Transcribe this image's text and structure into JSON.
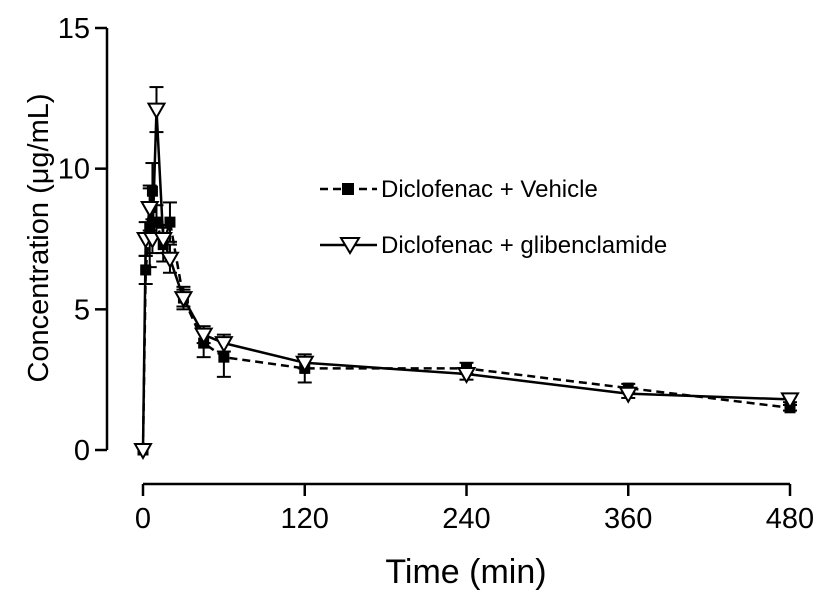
{
  "chart_data": {
    "type": "line",
    "xlabel": "Time (min)",
    "ylabel": "Concentration (μg/mL)",
    "xlim": [
      0,
      480
    ],
    "ylim": [
      0,
      15
    ],
    "x_ticks": [
      0,
      120,
      240,
      360,
      480
    ],
    "x_tick_labels": [
      "0",
      "120",
      "240",
      "360",
      "480"
    ],
    "y_ticks": [
      0,
      5,
      10,
      15
    ],
    "y_tick_labels": [
      "0",
      "5",
      "10",
      "15"
    ],
    "grid": false,
    "legend_position": "center-right",
    "series": [
      {
        "name": "Diclofenac + Vehicle",
        "style": "dashed",
        "marker": "filled-square",
        "color": "#000000",
        "points": [
          {
            "x": 0,
            "y": 0.0,
            "err": 0.0
          },
          {
            "x": 2,
            "y": 6.4,
            "err": 0.5
          },
          {
            "x": 5,
            "y": 7.9,
            "err": 1.4
          },
          {
            "x": 7,
            "y": 9.2,
            "err": 1.0
          },
          {
            "x": 10,
            "y": 8.1,
            "err": 0.6
          },
          {
            "x": 15,
            "y": 7.3,
            "err": 0.6
          },
          {
            "x": 20,
            "y": 8.1,
            "err": 0.7
          },
          {
            "x": 30,
            "y": 5.4,
            "err": 0.4
          },
          {
            "x": 45,
            "y": 3.8,
            "err": 0.5
          },
          {
            "x": 60,
            "y": 3.3,
            "err": 0.7
          },
          {
            "x": 120,
            "y": 2.9,
            "err": 0.5
          },
          {
            "x": 240,
            "y": 2.9,
            "err": 0.2
          },
          {
            "x": 360,
            "y": 2.2,
            "err": 0.15
          },
          {
            "x": 480,
            "y": 1.5,
            "err": 0.1
          }
        ]
      },
      {
        "name": "Diclofenac + glibenclamide",
        "style": "solid",
        "marker": "open-triangle-down",
        "color": "#000000",
        "points": [
          {
            "x": 0,
            "y": 0.0,
            "err": 0.0
          },
          {
            "x": 2,
            "y": 7.5,
            "err": 0.6
          },
          {
            "x": 5,
            "y": 8.6,
            "err": 0.8
          },
          {
            "x": 7,
            "y": 7.5,
            "err": 0.5
          },
          {
            "x": 10,
            "y": 12.1,
            "err": 0.8
          },
          {
            "x": 15,
            "y": 7.5,
            "err": 0.5
          },
          {
            "x": 20,
            "y": 6.8,
            "err": 0.5
          },
          {
            "x": 30,
            "y": 5.4,
            "err": 0.3
          },
          {
            "x": 45,
            "y": 4.1,
            "err": 0.3
          },
          {
            "x": 60,
            "y": 3.8,
            "err": 0.3
          },
          {
            "x": 120,
            "y": 3.1,
            "err": 0.2
          },
          {
            "x": 240,
            "y": 2.7,
            "err": 0.2
          },
          {
            "x": 360,
            "y": 2.0,
            "err": 0.15
          },
          {
            "x": 480,
            "y": 1.8,
            "err": 0.1
          }
        ]
      }
    ]
  }
}
